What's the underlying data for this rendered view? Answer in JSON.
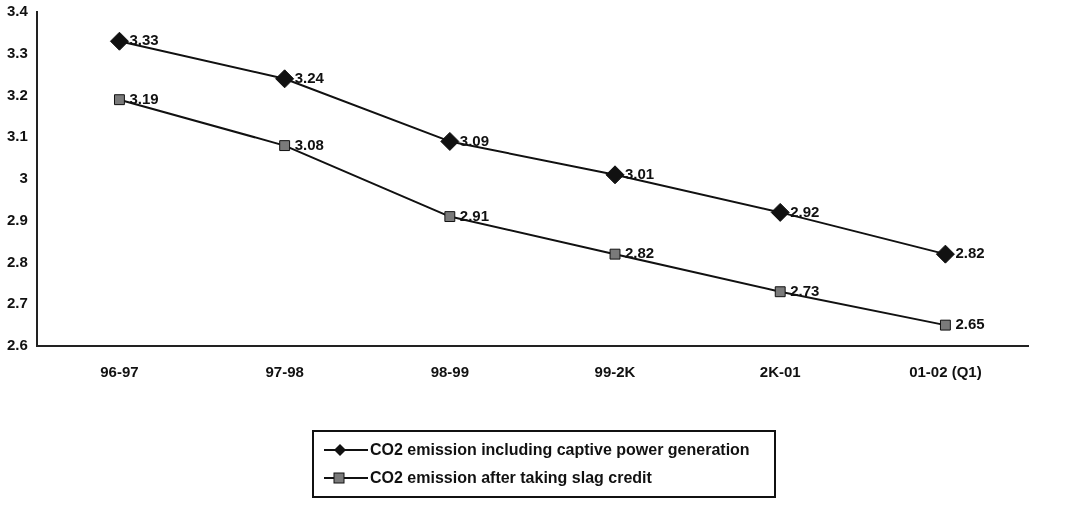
{
  "chart_data": {
    "type": "line",
    "categories": [
      "96-97",
      "97-98",
      "98-99",
      "99-2K",
      "2K-01",
      "01-02 (Q1)"
    ],
    "series": [
      {
        "name": "CO2 emission including captive power generation",
        "color": "#111111",
        "marker": "diamond",
        "values": [
          3.33,
          3.24,
          3.09,
          3.01,
          2.92,
          2.82
        ]
      },
      {
        "name": "CO2 emission after taking slag credit",
        "color": "#7a7a7a",
        "marker": "square",
        "values": [
          3.19,
          3.08,
          2.91,
          2.82,
          2.73,
          2.65
        ]
      }
    ],
    "ylim": [
      2.6,
      3.4
    ],
    "yticks": [
      2.6,
      2.7,
      2.8,
      2.9,
      3,
      3.1,
      3.2,
      3.3,
      3.4
    ],
    "grid": false,
    "legend": "bottom",
    "data_labels": true
  }
}
